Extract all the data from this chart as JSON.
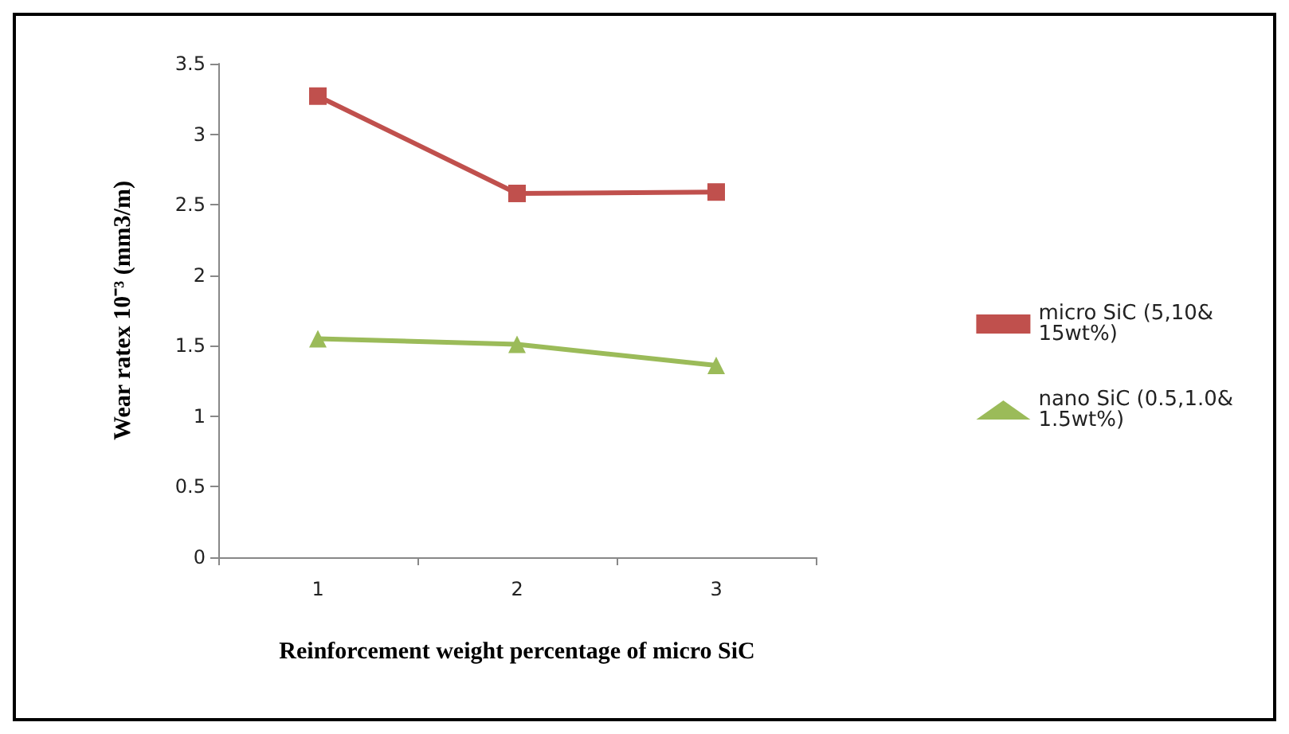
{
  "chart_data": {
    "type": "line",
    "xlabel": "Reinforcement weight percentage of micro SiC",
    "ylabel": "Wear ratex 10⁻³ (mm3/m)",
    "categories": [
      "1",
      "2",
      "3"
    ],
    "series": [
      {
        "name": "micro SiC (5,10&15wt%)",
        "color": "#c0504d",
        "marker": "square",
        "values": [
          3.27,
          2.58,
          2.59
        ]
      },
      {
        "name": "nano SiC (0.5,1.0&1.5wt%)",
        "color": "#9bbb59",
        "marker": "triangle",
        "values": [
          1.55,
          1.51,
          1.36
        ]
      }
    ],
    "ylim": [
      0,
      3.5
    ],
    "yticks": [
      0,
      0.5,
      1,
      1.5,
      2,
      2.5,
      3,
      3.5
    ],
    "grid": false,
    "legend": "right"
  }
}
